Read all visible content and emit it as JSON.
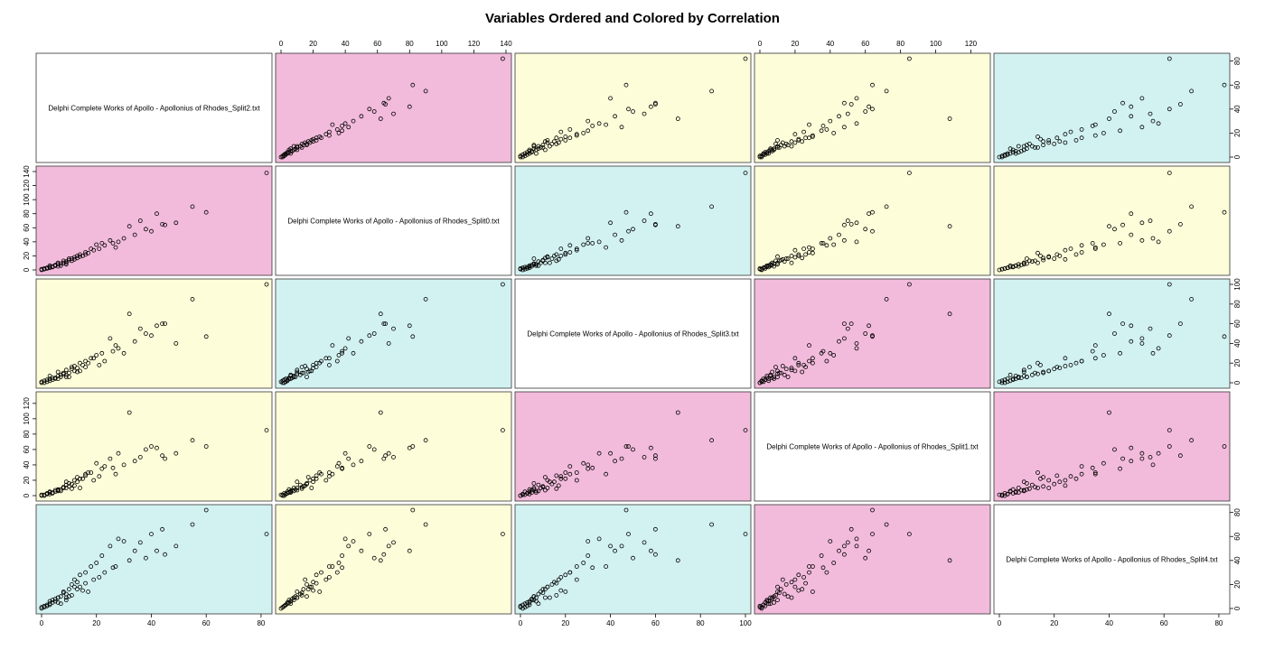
{
  "title": "Variables Ordered and Colored by Correlation",
  "colors": {
    "high": "#f2bbdb",
    "medium": "#fdfdd9",
    "low": "#d2f2f1",
    "diagonal": "#ffffff",
    "points": "#000000"
  },
  "chart_data": {
    "type": "scatter",
    "subtype": "scatterplot-matrix",
    "title": "Variables Ordered and Colored by Correlation",
    "variables": [
      "Delphi Complete Works of Apollo - Apollonius of Rhodes_Split2.txt",
      "Delphi Complete Works of Apollo - Apollonius of Rhodes_Split0.txt",
      "Delphi Complete Works of Apollo - Apollonius of Rhodes_Split3.txt",
      "Delphi Complete Works of Apollo - Apollonius of Rhodes_Split1.txt",
      "Delphi Complete Works of Apollo - Apollonius of Rhodes_Split4.txt"
    ],
    "ranges": [
      [
        0,
        82
      ],
      [
        0,
        140
      ],
      [
        0,
        100
      ],
      [
        0,
        128
      ],
      [
        0,
        82
      ]
    ],
    "ticks": [
      [
        0,
        20,
        40,
        60,
        80
      ],
      [
        0,
        20,
        40,
        60,
        80,
        100,
        120,
        140
      ],
      [
        0,
        20,
        40,
        60,
        80,
        100
      ],
      [
        0,
        20,
        40,
        60,
        80,
        100,
        120
      ],
      [
        0,
        20,
        40,
        60,
        80
      ]
    ],
    "axis_layout": {
      "top": [
        1,
        3
      ],
      "bottom": [
        0,
        2,
        4
      ],
      "left": [
        1,
        3
      ],
      "right": [
        0,
        2,
        4
      ]
    },
    "panel_colors": [
      [
        "diagonal",
        "high",
        "medium",
        "medium",
        "low"
      ],
      [
        "high",
        "diagonal",
        "low",
        "medium",
        "medium"
      ],
      [
        "medium",
        "low",
        "diagonal",
        "high",
        "low"
      ],
      [
        "medium",
        "medium",
        "high",
        "diagonal",
        "high"
      ],
      [
        "low",
        "medium",
        "low",
        "high",
        "diagonal"
      ]
    ],
    "observations": [
      [
        82,
        138,
        100,
        85,
        62
      ],
      [
        60,
        82,
        47,
        64,
        82
      ],
      [
        49,
        67,
        40,
        55,
        52
      ],
      [
        42,
        80,
        58,
        62,
        48
      ],
      [
        36,
        70,
        55,
        50,
        55
      ],
      [
        32,
        62,
        70,
        108,
        40
      ],
      [
        30,
        45,
        30,
        40,
        56
      ],
      [
        28,
        40,
        35,
        55,
        58
      ],
      [
        25,
        42,
        45,
        48,
        52
      ],
      [
        22,
        38,
        30,
        35,
        44
      ],
      [
        20,
        36,
        28,
        42,
        38
      ],
      [
        18,
        30,
        25,
        30,
        35
      ],
      [
        16,
        25,
        22,
        28,
        30
      ],
      [
        14,
        22,
        20,
        22,
        28
      ],
      [
        13,
        20,
        15,
        18,
        22
      ],
      [
        12,
        18,
        12,
        20,
        18
      ],
      [
        11,
        16,
        14,
        15,
        20
      ],
      [
        10,
        14,
        10,
        12,
        16
      ],
      [
        9,
        12,
        8,
        14,
        12
      ],
      [
        8,
        10,
        9,
        10,
        14
      ],
      [
        7,
        9,
        6,
        8,
        10
      ],
      [
        6,
        8,
        7,
        6,
        9
      ],
      [
        5,
        7,
        5,
        7,
        8
      ],
      [
        5,
        6,
        4,
        5,
        6
      ],
      [
        4,
        5,
        5,
        4,
        7
      ],
      [
        4,
        4,
        3,
        3,
        5
      ],
      [
        3,
        4,
        2,
        5,
        4
      ],
      [
        3,
        3,
        4,
        2,
        3
      ],
      [
        2,
        2,
        3,
        3,
        2
      ],
      [
        2,
        3,
        1,
        2,
        3
      ],
      [
        1,
        1,
        2,
        1,
        1
      ],
      [
        1,
        2,
        0,
        0,
        2
      ],
      [
        0,
        0,
        1,
        1,
        0
      ],
      [
        0,
        1,
        0,
        0,
        1
      ],
      [
        6,
        5,
        4,
        8,
        5
      ],
      [
        7,
        6,
        8,
        6,
        4
      ],
      [
        9,
        8,
        6,
        10,
        7
      ],
      [
        3,
        6,
        7,
        4,
        6
      ],
      [
        15,
        20,
        18,
        22,
        15
      ],
      [
        17,
        24,
        20,
        30,
        14
      ],
      [
        19,
        28,
        25,
        20,
        24
      ],
      [
        21,
        30,
        18,
        25,
        26
      ],
      [
        23,
        35,
        22,
        38,
        30
      ],
      [
        26,
        38,
        32,
        36,
        34
      ],
      [
        27,
        32,
        38,
        28,
        35
      ],
      [
        34,
        50,
        42,
        45,
        48
      ],
      [
        38,
        58,
        50,
        60,
        42
      ],
      [
        44,
        65,
        60,
        52,
        66
      ],
      [
        40,
        55,
        48,
        64,
        62
      ],
      [
        55,
        90,
        85,
        72,
        70
      ],
      [
        45,
        64,
        60,
        48,
        45
      ],
      [
        12,
        15,
        17,
        13,
        24
      ],
      [
        13,
        17,
        11,
        24,
        16
      ],
      [
        11,
        13,
        16,
        9,
        11
      ],
      [
        9,
        10,
        13,
        18,
        9
      ],
      [
        8,
        13,
        10,
        11,
        13
      ],
      [
        10,
        16,
        6,
        16,
        10
      ],
      [
        14,
        19,
        12,
        10,
        18
      ],
      [
        16,
        22,
        16,
        26,
        21
      ],
      [
        6,
        10,
        11,
        7,
        9
      ]
    ]
  }
}
